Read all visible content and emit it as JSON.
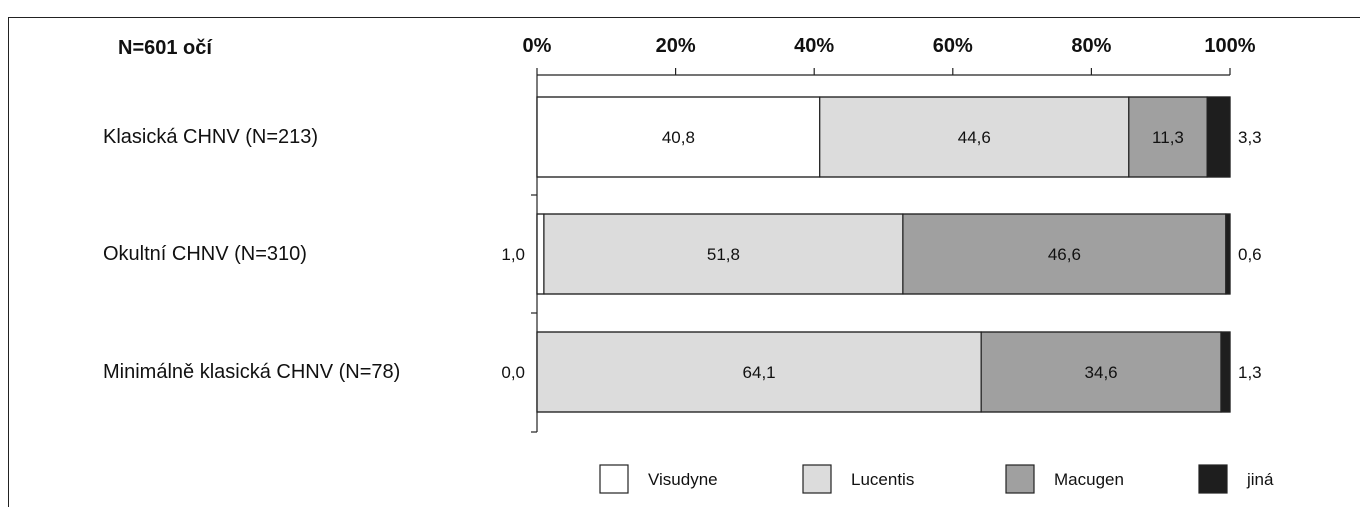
{
  "chart_data": {
    "type": "bar",
    "orientation": "horizontal",
    "stacked": true,
    "note": "N=601 očí",
    "categories": [
      "Klasická CHNV (N=213)",
      "Okultní CHNV (N=310)",
      "Minimálně klasická CHNV (N=78)"
    ],
    "series": [
      {
        "name": "Visudyne",
        "color": "#ffffff",
        "values": [
          40.8,
          1.0,
          0.0
        ],
        "labels": [
          "40,8",
          "1,0",
          "0,0"
        ]
      },
      {
        "name": "Lucentis",
        "color": "#dcdcdc",
        "values": [
          44.6,
          51.8,
          64.1
        ],
        "labels": [
          "44,6",
          "51,8",
          "64,1"
        ]
      },
      {
        "name": "Macugen",
        "color": "#a0a0a0",
        "values": [
          11.3,
          46.6,
          34.6
        ],
        "labels": [
          "11,3",
          "46,6",
          "34,6"
        ]
      },
      {
        "name": "jiná",
        "color": "#1e1e1e",
        "values": [
          3.3,
          0.6,
          1.3
        ],
        "labels": [
          "3,3",
          "0,6",
          "1,3"
        ]
      }
    ],
    "xlim": [
      0,
      100
    ],
    "xticks": [
      "0%",
      "20%",
      "40%",
      "60%",
      "80%",
      "100%"
    ],
    "axis_position": "top",
    "legend_position": "bottom",
    "grid": false
  }
}
